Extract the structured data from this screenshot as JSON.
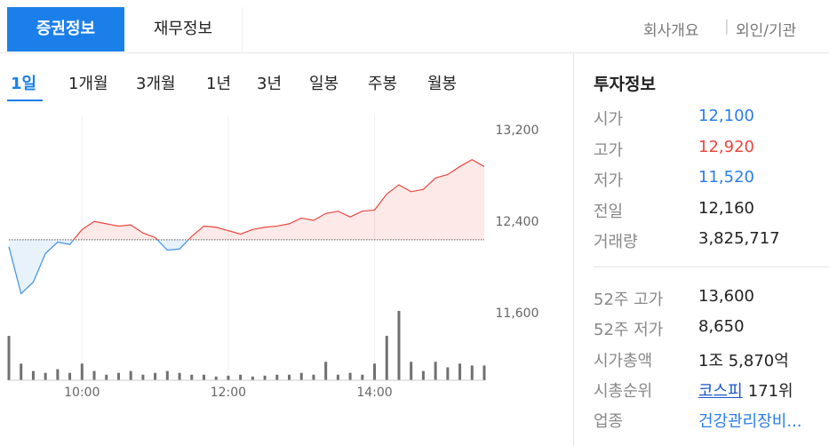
{
  "tabs": [
    "증권정보",
    "재무정보"
  ],
  "links": [
    "회사개요",
    "외인/기관"
  ],
  "periods": [
    "1일",
    "1개월",
    "3개월",
    "1년",
    "3년",
    "일봉",
    "주봉",
    "월봉"
  ],
  "chart_data": {
    "type": "line",
    "x": [
      "09:00",
      "09:10",
      "09:20",
      "09:30",
      "09:40",
      "09:50",
      "10:00",
      "10:10",
      "10:20",
      "10:30",
      "10:40",
      "10:50",
      "11:00",
      "11:10",
      "11:20",
      "11:30",
      "11:40",
      "11:50",
      "12:00",
      "12:10",
      "12:20",
      "12:30",
      "12:40",
      "12:50",
      "13:00",
      "13:10",
      "13:20",
      "13:30",
      "13:40",
      "13:50",
      "14:00",
      "14:10",
      "14:20",
      "14:30",
      "14:40",
      "14:50",
      "15:00",
      "15:10",
      "15:20",
      "15:30"
    ],
    "values": [
      12100,
      11690,
      11790,
      12040,
      12140,
      12120,
      12250,
      12320,
      12300,
      12280,
      12290,
      12220,
      12180,
      12070,
      12080,
      12190,
      12280,
      12270,
      12240,
      12210,
      12250,
      12270,
      12280,
      12300,
      12350,
      12330,
      12390,
      12410,
      12360,
      12410,
      12420,
      12560,
      12640,
      12580,
      12600,
      12700,
      12730,
      12800,
      12860,
      12800
    ],
    "volume": [
      48000,
      18000,
      10000,
      8000,
      12000,
      8000,
      18000,
      10000,
      6000,
      8000,
      10000,
      6000,
      8000,
      10000,
      8000,
      6000,
      6000,
      4000,
      5000,
      6000,
      4000,
      5000,
      6000,
      6000,
      8000,
      6000,
      20000,
      6000,
      8000,
      6000,
      18000,
      48000,
      75000,
      20000,
      10000,
      20000,
      14000,
      18000,
      16000,
      16000
    ],
    "reference_line": 12160,
    "xlim": [
      "09:00",
      "15:30"
    ],
    "xticks": [
      "10:00",
      "12:00",
      "14:00"
    ],
    "ylim": [
      11500,
      13300
    ],
    "yticks": [
      {
        "value": 11600,
        "label": "11,600"
      },
      {
        "value": 12400,
        "label": "12,400"
      },
      {
        "value": 13200,
        "label": "13,200"
      }
    ],
    "up_color": "#e8473f",
    "down_color": "#3f8fe0",
    "volume_color": "#707070"
  },
  "info": {
    "title": "투자정보",
    "rows": [
      {
        "label": "시가",
        "value": "12,100",
        "color": "#2b7de9"
      },
      {
        "label": "고가",
        "value": "12,920",
        "color": "#e8473f"
      },
      {
        "label": "저가",
        "value": "11,520",
        "color": "#2b7de9"
      },
      {
        "label": "전일",
        "value": "12,160"
      },
      {
        "label": "거래량",
        "value": "3,825,717"
      },
      {
        "label": "52주 고가",
        "value": "13,600"
      },
      {
        "label": "52주 저가",
        "value": "8,650"
      },
      {
        "label": "시가총액",
        "value": "1조 5,870억"
      },
      {
        "label": "시총순위",
        "link": "코스피",
        "value": "171위"
      },
      {
        "label": "업종",
        "value": "건강관리장비...",
        "color": "#2b7de9"
      }
    ]
  }
}
